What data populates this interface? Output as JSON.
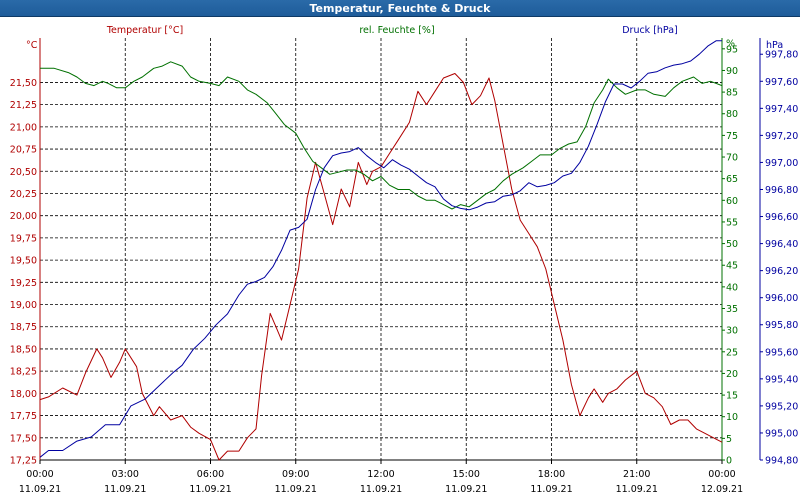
{
  "window": {
    "title": "Temperatur, Feuchte & Druck"
  },
  "colors": {
    "temperature": "#b00000",
    "humidity": "#007000",
    "pressure": "#0000a0",
    "grid": "#000000"
  },
  "chart_data": {
    "type": "line",
    "title": "Temperatur, Feuchte & Druck",
    "axes": {
      "temperature": {
        "label": "Temperatur [°C]",
        "unit": "°C",
        "min": 17.25,
        "max": 22.0,
        "ticks": [
          "17,25",
          "17,50",
          "17,75",
          "18,00",
          "18,25",
          "18,50",
          "18,75",
          "19,00",
          "19,25",
          "19,50",
          "19,75",
          "20,00",
          "20,25",
          "20,50",
          "20,75",
          "21,00",
          "21,25",
          "21,50"
        ]
      },
      "humidity": {
        "label": "rel. Feuchte [%]",
        "unit": "%",
        "min": 0,
        "max": 97.5,
        "ticks": [
          "0",
          "5",
          "10",
          "15",
          "20",
          "25",
          "30",
          "35",
          "40",
          "45",
          "50",
          "55",
          "60",
          "65",
          "70",
          "75",
          "80",
          "85",
          "90",
          "95",
          "%"
        ]
      },
      "pressure": {
        "label": "Druck [hPa]",
        "unit": "hPa",
        "min": 994.8,
        "max": 997.92,
        "ticks": [
          "994,80",
          "995,00",
          "995,20",
          "995,40",
          "995,60",
          "995,80",
          "996,00",
          "996,20",
          "996,40",
          "996,60",
          "996,80",
          "997,00",
          "997,20",
          "997,40",
          "997,60",
          "997,80"
        ]
      }
    },
    "x_ticks": [
      {
        "time": "00:00",
        "date": "11.09.21"
      },
      {
        "time": "03:00",
        "date": "11.09.21"
      },
      {
        "time": "06:00",
        "date": "11.09.21"
      },
      {
        "time": "09:00",
        "date": "11.09.21"
      },
      {
        "time": "12:00",
        "date": "11.09.21"
      },
      {
        "time": "15:00",
        "date": "11.09.21"
      },
      {
        "time": "18:00",
        "date": "11.09.21"
      },
      {
        "time": "21:00",
        "date": "11.09.21"
      },
      {
        "time": "00:00",
        "date": "12.09.21"
      }
    ],
    "x_range_hours": [
      0,
      24
    ],
    "series": [
      {
        "name": "Temperatur [°C]",
        "axis": "temperature",
        "color": "#b00000",
        "hours": [
          0,
          0.3,
          0.8,
          1.3,
          1.6,
          2.0,
          2.2,
          2.5,
          2.8,
          3.0,
          3.4,
          3.6,
          4.0,
          4.2,
          4.6,
          5.0,
          5.3,
          5.6,
          6.0,
          6.3,
          6.6,
          7.0,
          7.3,
          7.6,
          7.8,
          8.1,
          8.3,
          8.5,
          8.8,
          9.1,
          9.4,
          9.7,
          10.0,
          10.3,
          10.6,
          10.9,
          11.2,
          11.5,
          11.7,
          12.0,
          12.3,
          12.6,
          13.0,
          13.3,
          13.6,
          13.9,
          14.2,
          14.6,
          14.9,
          15.2,
          15.5,
          15.8,
          16.0,
          16.3,
          16.6,
          16.9,
          17.2,
          17.5,
          17.8,
          18.1,
          18.4,
          18.7,
          19.0,
          19.3,
          19.5,
          19.8,
          20.0,
          20.3,
          20.6,
          21.0,
          21.3,
          21.6,
          21.9,
          22.2,
          22.5,
          22.8,
          23.1,
          23.4,
          23.7,
          24.0
        ],
        "values": [
          17.93,
          17.96,
          18.06,
          17.98,
          18.23,
          18.5,
          18.4,
          18.18,
          18.35,
          18.5,
          18.3,
          18.0,
          17.75,
          17.85,
          17.7,
          17.75,
          17.62,
          17.55,
          17.48,
          17.25,
          17.35,
          17.35,
          17.5,
          17.6,
          18.2,
          18.9,
          18.75,
          18.6,
          19.0,
          19.4,
          20.2,
          20.6,
          20.25,
          19.9,
          20.3,
          20.1,
          20.6,
          20.35,
          20.5,
          20.55,
          20.7,
          20.85,
          21.05,
          21.4,
          21.25,
          21.4,
          21.55,
          21.6,
          21.5,
          21.25,
          21.35,
          21.55,
          21.3,
          20.8,
          20.3,
          19.95,
          19.8,
          19.65,
          19.4,
          19.0,
          18.6,
          18.1,
          17.75,
          17.95,
          18.05,
          17.9,
          18.0,
          18.05,
          18.15,
          18.25,
          18.0,
          17.95,
          17.85,
          17.65,
          17.7,
          17.7,
          17.6,
          17.55,
          17.5,
          17.45
        ]
      },
      {
        "name": "rel. Feuchte [%]",
        "axis": "humidity",
        "color": "#007000",
        "hours": [
          0,
          0.5,
          1.0,
          1.3,
          1.6,
          1.9,
          2.2,
          2.4,
          2.7,
          3.0,
          3.3,
          3.6,
          4.0,
          4.3,
          4.6,
          5.0,
          5.3,
          5.6,
          6.0,
          6.3,
          6.6,
          7.0,
          7.3,
          7.6,
          8.0,
          8.3,
          8.6,
          9.0,
          9.3,
          9.6,
          9.9,
          10.2,
          10.5,
          10.8,
          11.1,
          11.4,
          11.7,
          12.0,
          12.3,
          12.6,
          13.0,
          13.3,
          13.6,
          13.9,
          14.2,
          14.5,
          14.8,
          15.1,
          15.4,
          15.7,
          16.0,
          16.3,
          16.6,
          17.0,
          17.3,
          17.6,
          18.0,
          18.3,
          18.6,
          18.9,
          19.2,
          19.5,
          19.8,
          20.0,
          20.3,
          20.6,
          21.0,
          21.3,
          21.6,
          22.0,
          22.3,
          22.6,
          23.0,
          23.3,
          23.6,
          24.0
        ],
        "values": [
          90.5,
          90.5,
          89.5,
          88.5,
          87,
          86.5,
          87.5,
          87,
          86,
          86,
          87.5,
          88.5,
          90.5,
          91,
          92,
          91,
          88.5,
          87.5,
          87,
          86.5,
          88.5,
          87.5,
          85.5,
          84.5,
          82.5,
          80,
          77.5,
          75.5,
          72,
          69,
          67.5,
          66,
          66.5,
          67,
          67,
          66,
          64.5,
          65.5,
          63.5,
          62.5,
          62.5,
          61,
          60,
          60,
          59,
          58,
          59,
          58.5,
          60,
          61.5,
          62.5,
          64.5,
          66,
          67.5,
          69,
          70.5,
          70.5,
          72,
          73,
          73.5,
          77,
          82.5,
          85.5,
          88,
          86,
          84.5,
          85.5,
          85.5,
          84.5,
          84,
          86,
          87.5,
          88.5,
          87,
          87.5,
          86.5
        ]
      },
      {
        "name": "Druck [hPa]",
        "axis": "pressure",
        "color": "#0000a0",
        "hours": [
          0,
          0.3,
          0.8,
          1.3,
          1.8,
          2.3,
          2.8,
          3.2,
          3.7,
          4.1,
          4.4,
          4.7,
          5.0,
          5.4,
          5.8,
          6.2,
          6.6,
          7.0,
          7.3,
          7.6,
          7.9,
          8.2,
          8.5,
          8.8,
          9.1,
          9.4,
          9.7,
          10.0,
          10.3,
          10.6,
          10.9,
          11.2,
          11.5,
          11.8,
          12.1,
          12.4,
          12.7,
          13.0,
          13.3,
          13.6,
          13.9,
          14.2,
          14.5,
          14.8,
          15.1,
          15.4,
          15.7,
          16.0,
          16.3,
          16.6,
          16.9,
          17.2,
          17.5,
          17.8,
          18.1,
          18.4,
          18.7,
          19.0,
          19.3,
          19.6,
          19.9,
          20.2,
          20.5,
          20.8,
          21.1,
          21.4,
          21.7,
          22.0,
          22.3,
          22.6,
          22.9,
          23.2,
          23.5,
          23.8,
          24.0
        ],
        "values": [
          994.82,
          994.87,
          994.87,
          994.94,
          994.97,
          995.06,
          995.06,
          995.2,
          995.25,
          995.33,
          995.39,
          995.45,
          995.5,
          995.62,
          995.7,
          995.8,
          995.88,
          996.02,
          996.1,
          996.12,
          996.15,
          996.23,
          996.35,
          996.5,
          996.52,
          996.58,
          996.8,
          996.96,
          997.05,
          997.07,
          997.08,
          997.11,
          997.05,
          997.0,
          996.96,
          997.02,
          996.98,
          996.95,
          996.9,
          996.85,
          996.82,
          996.73,
          996.68,
          996.66,
          996.65,
          996.67,
          996.7,
          996.71,
          996.75,
          996.76,
          996.79,
          996.85,
          996.82,
          996.83,
          996.85,
          996.9,
          996.92,
          997.0,
          997.12,
          997.28,
          997.45,
          997.58,
          997.58,
          997.55,
          997.6,
          997.66,
          997.67,
          997.7,
          997.72,
          997.73,
          997.75,
          997.8,
          997.86,
          997.9,
          997.9
        ]
      }
    ]
  }
}
